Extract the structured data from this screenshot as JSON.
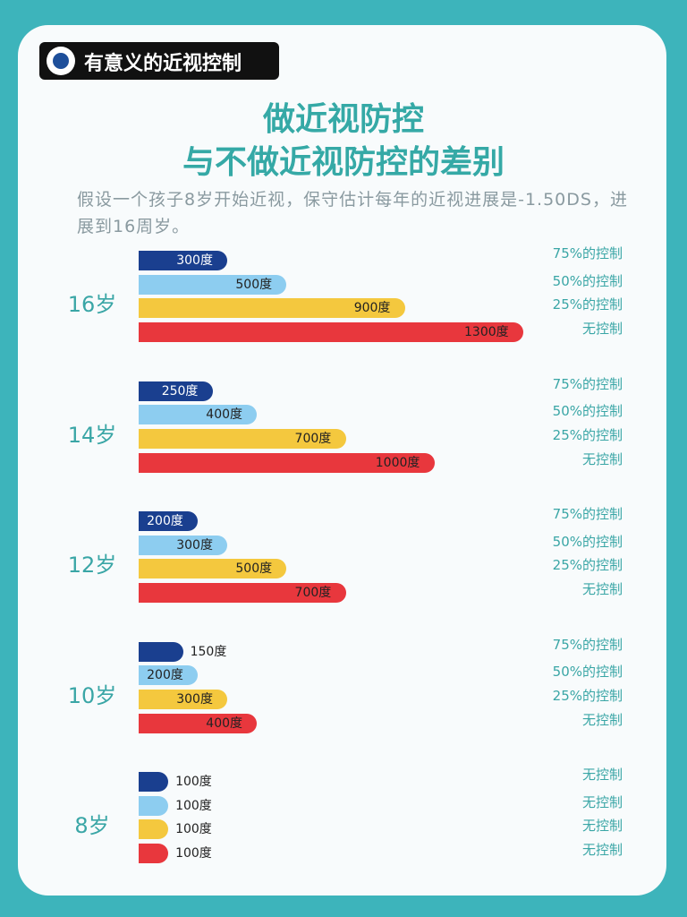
{
  "header": {
    "badge": "有意义的近视控制"
  },
  "chart_data": {
    "type": "bar",
    "orientation": "horizontal",
    "title": [
      "做近视防控",
      "与不做近视防控的差别"
    ],
    "subtitle": "假设一个孩子8岁开始近视，保守估计每年的近视进展是-1.50DS，进展到16周岁。",
    "xlim": [
      0,
      1300
    ],
    "groups": [
      {
        "label": "16岁",
        "bars": [
          {
            "name": "75%的控制",
            "value": 300,
            "value_label": "300度",
            "color": "#1a3f8f"
          },
          {
            "name": "50%的控制",
            "value": 500,
            "value_label": "500度",
            "color": "#8dcdf0"
          },
          {
            "name": "25%的控制",
            "value": 900,
            "value_label": "900度",
            "color": "#f4c83e"
          },
          {
            "name": "无控制",
            "value": 1300,
            "value_label": "1300度",
            "color": "#e8373d"
          }
        ]
      },
      {
        "label": "14岁",
        "bars": [
          {
            "name": "75%的控制",
            "value": 250,
            "value_label": "250度",
            "color": "#1a3f8f"
          },
          {
            "name": "50%的控制",
            "value": 400,
            "value_label": "400度",
            "color": "#8dcdf0"
          },
          {
            "name": "25%的控制",
            "value": 700,
            "value_label": "700度",
            "color": "#f4c83e"
          },
          {
            "name": "无控制",
            "value": 1000,
            "value_label": "1000度",
            "color": "#e8373d"
          }
        ]
      },
      {
        "label": "12岁",
        "bars": [
          {
            "name": "75%的控制",
            "value": 200,
            "value_label": "200度",
            "color": "#1a3f8f"
          },
          {
            "name": "50%的控制",
            "value": 300,
            "value_label": "300度",
            "color": "#8dcdf0"
          },
          {
            "name": "25%的控制",
            "value": 500,
            "value_label": "500度",
            "color": "#f4c83e"
          },
          {
            "name": "无控制",
            "value": 700,
            "value_label": "700度",
            "color": "#e8373d"
          }
        ]
      },
      {
        "label": "10岁",
        "bars": [
          {
            "name": "75%的控制",
            "value": 150,
            "value_label": "150度",
            "color": "#1a3f8f"
          },
          {
            "name": "50%的控制",
            "value": 200,
            "value_label": "200度",
            "color": "#8dcdf0"
          },
          {
            "name": "25%的控制",
            "value": 300,
            "value_label": "300度",
            "color": "#f4c83e"
          },
          {
            "name": "无控制",
            "value": 400,
            "value_label": "400度",
            "color": "#e8373d"
          }
        ]
      },
      {
        "label": "8岁",
        "bars": [
          {
            "name": "无控制",
            "value": 100,
            "value_label": "100度",
            "color": "#1a3f8f"
          },
          {
            "name": "无控制",
            "value": 100,
            "value_label": "100度",
            "color": "#8dcdf0"
          },
          {
            "name": "无控制",
            "value": 100,
            "value_label": "100度",
            "color": "#f4c83e"
          },
          {
            "name": "无控制",
            "value": 100,
            "value_label": "100度",
            "color": "#e8373d"
          }
        ]
      }
    ]
  }
}
